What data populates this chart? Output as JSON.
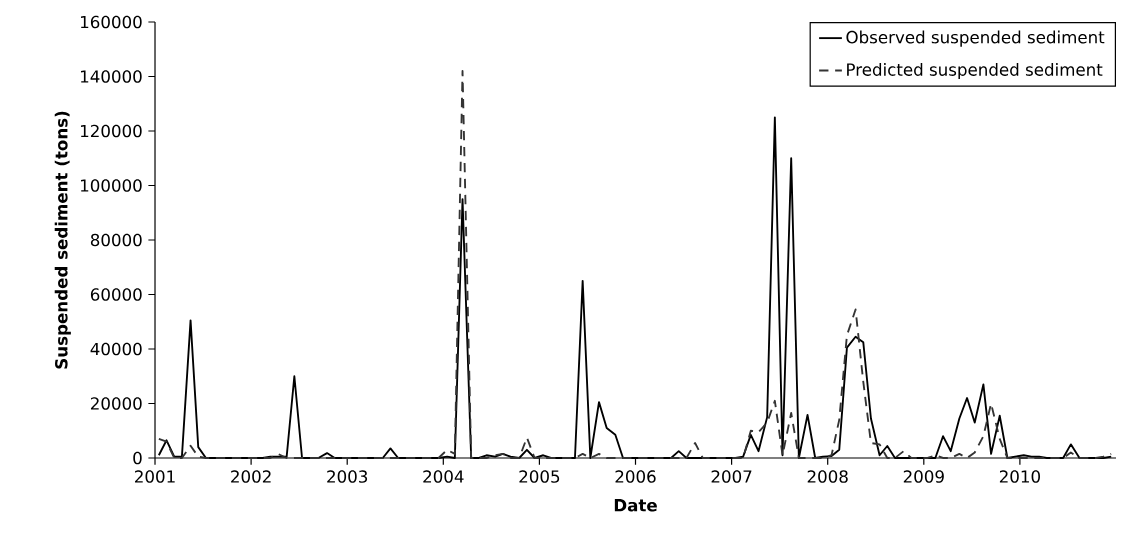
{
  "chart_data": {
    "type": "line",
    "xlabel": "Date",
    "ylabel": "Suspended sediment (tons)",
    "x": [
      "2001-01-15",
      "2001-02-15",
      "2001-03-15",
      "2001-04-15",
      "2001-05-15",
      "2001-06-15",
      "2001-07-15",
      "2001-08-15",
      "2001-09-15",
      "2001-10-15",
      "2001-11-15",
      "2001-12-15",
      "2002-01-15",
      "2002-02-15",
      "2002-03-15",
      "2002-04-15",
      "2002-05-15",
      "2002-06-15",
      "2002-07-15",
      "2002-08-15",
      "2002-09-15",
      "2002-10-15",
      "2002-11-15",
      "2002-12-15",
      "2003-01-15",
      "2003-02-15",
      "2003-03-15",
      "2003-04-15",
      "2003-05-15",
      "2003-06-15",
      "2003-07-15",
      "2003-08-15",
      "2003-09-15",
      "2003-10-15",
      "2003-11-15",
      "2003-12-15",
      "2004-01-15",
      "2004-02-15",
      "2004-03-15",
      "2004-04-15",
      "2004-05-15",
      "2004-06-15",
      "2004-07-15",
      "2004-08-15",
      "2004-09-15",
      "2004-10-15",
      "2004-11-15",
      "2004-12-15",
      "2005-01-15",
      "2005-02-15",
      "2005-03-15",
      "2005-04-15",
      "2005-05-15",
      "2005-06-15",
      "2005-07-15",
      "2005-08-15",
      "2005-09-15",
      "2005-10-15",
      "2005-11-15",
      "2005-12-15",
      "2006-01-15",
      "2006-02-15",
      "2006-03-15",
      "2006-04-15",
      "2006-05-15",
      "2006-06-15",
      "2006-07-15",
      "2006-08-15",
      "2006-09-15",
      "2006-10-15",
      "2006-11-15",
      "2006-12-15",
      "2007-01-15",
      "2007-02-15",
      "2007-03-15",
      "2007-04-15",
      "2007-05-15",
      "2007-06-15",
      "2007-07-15",
      "2007-08-15",
      "2007-09-15",
      "2007-10-15",
      "2007-11-15",
      "2007-12-15",
      "2008-01-15",
      "2008-02-15",
      "2008-03-15",
      "2008-04-15",
      "2008-05-15",
      "2008-06-15",
      "2008-07-15",
      "2008-08-15",
      "2008-09-15",
      "2008-10-15",
      "2008-11-15",
      "2008-12-15",
      "2009-01-15",
      "2009-02-15",
      "2009-03-15",
      "2009-04-15",
      "2009-05-15",
      "2009-06-15",
      "2009-07-15",
      "2009-08-15",
      "2009-09-15",
      "2009-10-15",
      "2009-11-15",
      "2009-12-15",
      "2010-01-15",
      "2010-02-15",
      "2010-03-15",
      "2010-04-15",
      "2010-05-15",
      "2010-06-15",
      "2010-07-15",
      "2010-08-15",
      "2010-09-15",
      "2010-10-15",
      "2010-11-15",
      "2010-12-15"
    ],
    "series": [
      {
        "name": "Observed suspended sediment",
        "color": "#000000",
        "line_style": "solid",
        "values": [
          1000,
          6500,
          500,
          500,
          50500,
          4000,
          0,
          0,
          0,
          0,
          0,
          0,
          0,
          0,
          500,
          500,
          500,
          30000,
          0,
          0,
          0,
          1800,
          0,
          0,
          0,
          0,
          0,
          0,
          0,
          3500,
          0,
          0,
          0,
          0,
          0,
          0,
          500,
          0,
          95000,
          0,
          0,
          1000,
          500,
          1500,
          500,
          0,
          3000,
          0,
          1000,
          0,
          0,
          0,
          0,
          65000,
          0,
          20500,
          11000,
          8500,
          0,
          0,
          0,
          0,
          0,
          0,
          0,
          2500,
          0,
          0,
          0,
          0,
          0,
          0,
          0,
          500,
          8500,
          2500,
          15000,
          125000,
          1000,
          110000,
          0,
          15800,
          0,
          500,
          700,
          3000,
          40500,
          44500,
          42500,
          14500,
          1000,
          4400,
          0,
          0,
          0,
          0,
          0,
          0,
          8000,
          2500,
          14500,
          22000,
          13000,
          27000,
          1500,
          15500,
          0,
          500,
          1000,
          500,
          500,
          0,
          0,
          0,
          5000,
          0,
          0,
          0,
          0,
          500
        ]
      },
      {
        "name": "Predicted suspended sediment",
        "color": "#333333",
        "line_style": "dashed",
        "values": [
          7000,
          6000,
          0,
          0,
          4500,
          500,
          0,
          0,
          0,
          0,
          0,
          0,
          0,
          0,
          0,
          1500,
          0,
          0,
          0,
          0,
          0,
          0,
          0,
          0,
          0,
          0,
          0,
          0,
          0,
          0,
          0,
          0,
          0,
          0,
          0,
          0,
          3000,
          1500,
          142000,
          0,
          0,
          0,
          1000,
          1500,
          0,
          0,
          7500,
          0,
          0,
          0,
          0,
          0,
          0,
          1500,
          0,
          1500,
          0,
          0,
          0,
          0,
          0,
          0,
          0,
          0,
          0,
          0,
          0,
          5500,
          0,
          0,
          0,
          0,
          0,
          0,
          10000,
          9500,
          13000,
          21000,
          1000,
          16500,
          0,
          0,
          0,
          0,
          1000,
          14000,
          45000,
          54500,
          28000,
          5500,
          5000,
          0,
          0,
          2500,
          0,
          0,
          0,
          1000,
          0,
          0,
          1500,
          0,
          2000,
          8000,
          20000,
          7000,
          0,
          0,
          0,
          0,
          0,
          0,
          0,
          0,
          2000,
          0,
          0,
          0,
          500,
          1500
        ]
      }
    ],
    "xlim": [
      "2001-01",
      "2011-01"
    ],
    "xticks": [
      "2001",
      "2002",
      "2003",
      "2004",
      "2005",
      "2006",
      "2007",
      "2008",
      "2009",
      "2010"
    ],
    "ylim": [
      0,
      160000
    ],
    "yticks": [
      0,
      20000,
      40000,
      60000,
      80000,
      100000,
      120000,
      140000,
      160000
    ],
    "grid": false,
    "legend": "top right",
    "marker": "none"
  }
}
